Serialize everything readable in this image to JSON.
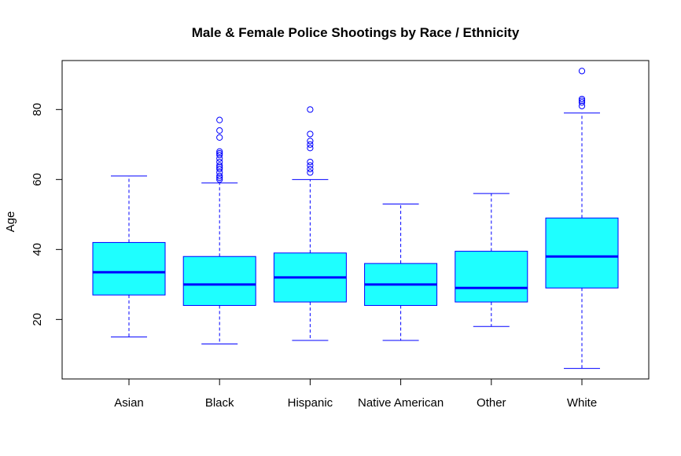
{
  "chart_data": {
    "type": "boxplot",
    "title": "Male & Female Police Shootings by Race / Ethnicity",
    "xlabel": "",
    "ylabel": "Age",
    "ylim": [
      3,
      94
    ],
    "yticks": [
      20,
      40,
      60,
      80
    ],
    "box_color": "#1EFFFF",
    "line_color": "#0000FF",
    "categories": [
      "Asian",
      "Black",
      "Hispanic",
      "Native American",
      "Other",
      "White"
    ],
    "boxes": [
      {
        "name": "Asian",
        "whisker_low": 15,
        "q1": 27,
        "median": 33.5,
        "q3": 42,
        "whisker_high": 61,
        "outliers": []
      },
      {
        "name": "Black",
        "whisker_low": 13,
        "q1": 24,
        "median": 30,
        "q3": 38,
        "whisker_high": 59,
        "outliers": [
          60,
          60.5,
          61,
          62,
          63,
          63.5,
          64,
          65,
          66,
          67,
          67.5,
          68,
          72,
          74,
          77
        ]
      },
      {
        "name": "Hispanic",
        "whisker_low": 14,
        "q1": 25,
        "median": 32,
        "q3": 39,
        "whisker_high": 60,
        "outliers": [
          62,
          63,
          64,
          65,
          69,
          70,
          71,
          73,
          80
        ]
      },
      {
        "name": "Native American",
        "whisker_low": 14,
        "q1": 24,
        "median": 30,
        "q3": 36,
        "whisker_high": 53,
        "outliers": []
      },
      {
        "name": "Other",
        "whisker_low": 18,
        "q1": 25,
        "median": 29,
        "q3": 39.5,
        "whisker_high": 56,
        "outliers": []
      },
      {
        "name": "White",
        "whisker_low": 6,
        "q1": 29,
        "median": 38,
        "q3": 49,
        "whisker_high": 79,
        "outliers": [
          81,
          82,
          82.5,
          83,
          91
        ]
      }
    ]
  }
}
